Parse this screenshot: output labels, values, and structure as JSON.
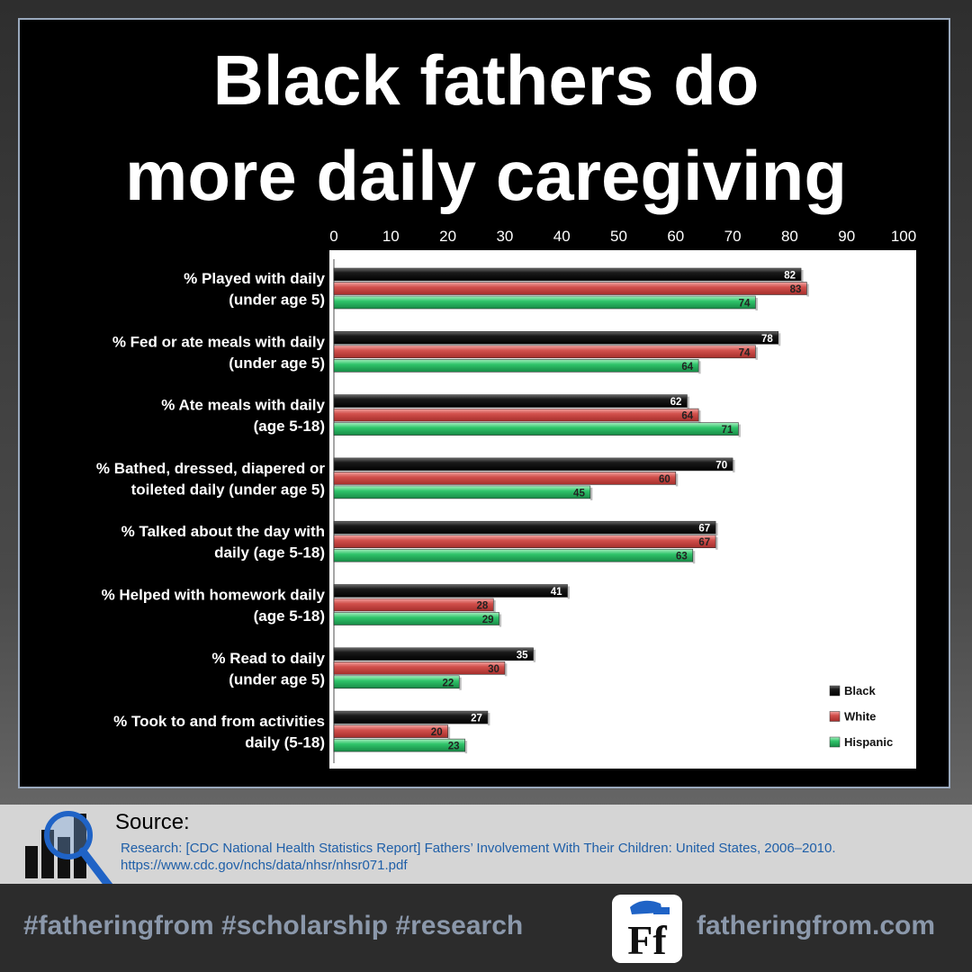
{
  "title_lines": [
    "Black fathers do",
    "more daily caregiving"
  ],
  "chart_data": {
    "type": "bar",
    "orientation": "horizontal",
    "xlim": [
      0,
      100
    ],
    "x_ticks": [
      "0",
      "10",
      "20",
      "30",
      "40",
      "50",
      "60",
      "70",
      "80",
      "90",
      "100"
    ],
    "categories": [
      [
        "% Played with daily",
        "(under age 5)"
      ],
      [
        "% Fed or ate meals with daily",
        "(under age 5)"
      ],
      [
        "% Ate meals with daily",
        "(age 5-18)"
      ],
      [
        "% Bathed, dressed, diapered or",
        "toileted daily (under age 5)"
      ],
      [
        "% Talked about the day with",
        "daily (age 5-18)"
      ],
      [
        "% Helped with homework daily",
        "(age 5-18)"
      ],
      [
        "% Read to daily",
        "(under age 5)"
      ],
      [
        "% Took to and from activities",
        "daily (5-18)"
      ]
    ],
    "series": [
      {
        "name": "Black",
        "color": "#111111",
        "values": [
          82,
          78,
          62,
          70,
          67,
          41,
          35,
          27
        ]
      },
      {
        "name": "White",
        "color": "#c9403d",
        "values": [
          83,
          74,
          64,
          60,
          67,
          28,
          30,
          20
        ]
      },
      {
        "name": "Hispanic",
        "color": "#22b35e",
        "values": [
          74,
          64,
          71,
          45,
          63,
          29,
          22,
          23
        ]
      }
    ],
    "data_labels": true,
    "legend_position": "bottom-right",
    "grid": false
  },
  "source": {
    "heading": "Source:",
    "reference": "Research:  [CDC National Health Statistics Report] Fathers’ Involvement With Their Children: United States, 2006–2010.",
    "url": "https://www.cdc.gov/nchs/data/nhsr/nhsr071.pdf"
  },
  "footer": {
    "hashtags": "#fatheringfrom #scholarship #research",
    "site": "fatheringfrom.com",
    "logo_text": "Ff"
  },
  "icons": {
    "research": "magnifier-bar-chart-icon"
  }
}
